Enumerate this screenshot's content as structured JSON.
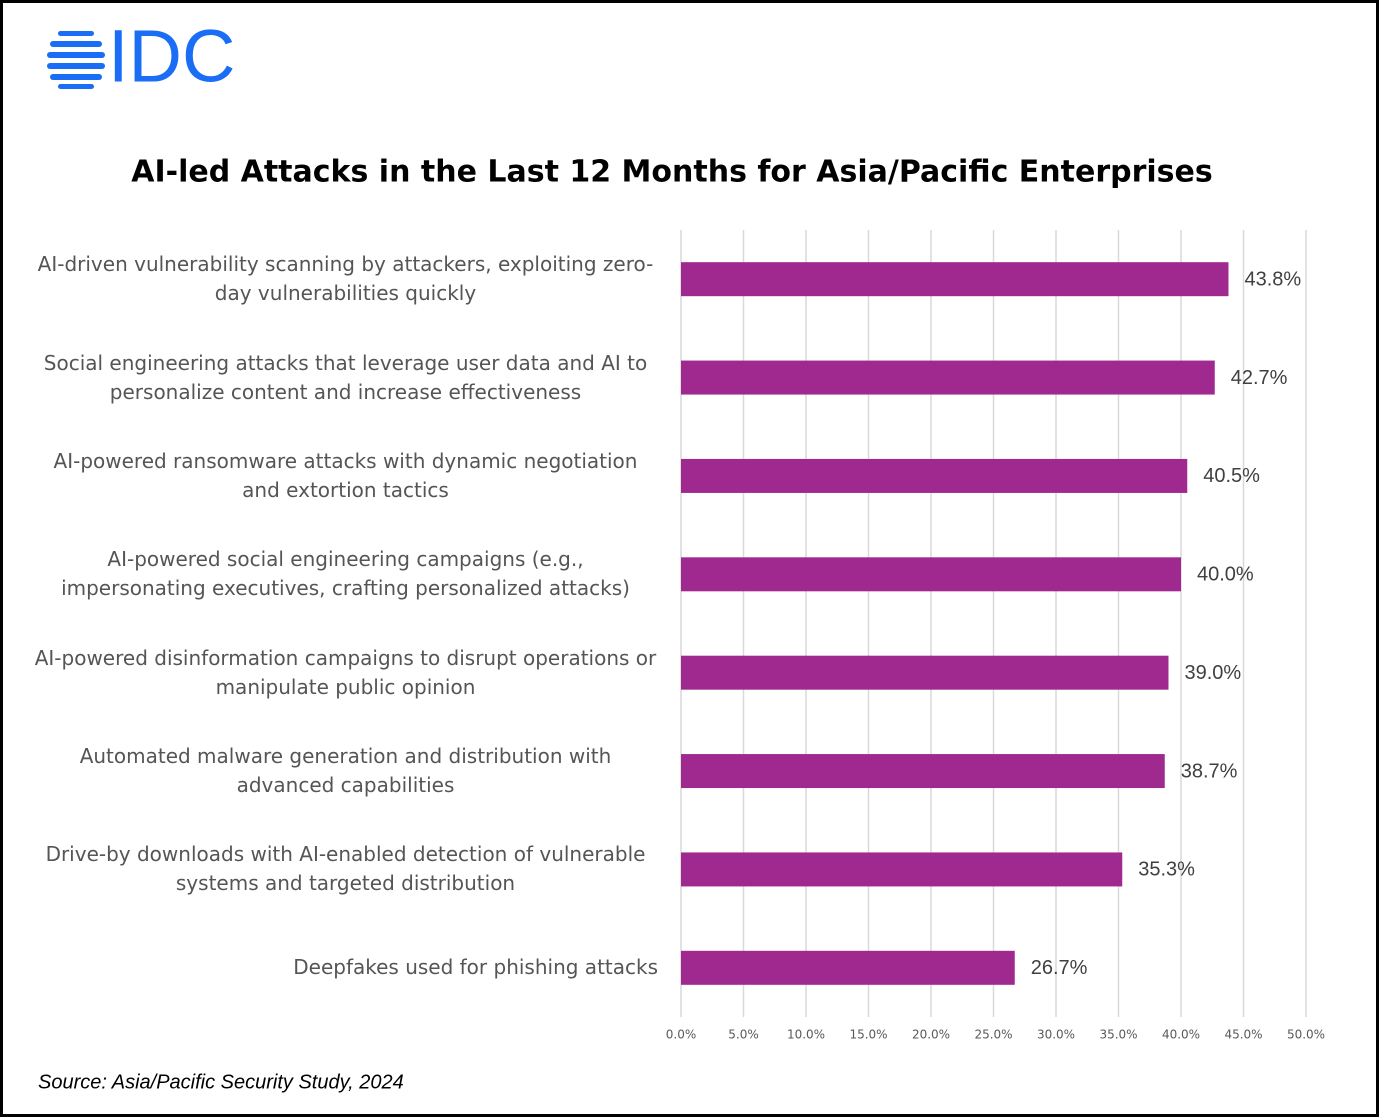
{
  "logo": "IDC",
  "chart_data": {
    "type": "bar",
    "orientation": "horizontal",
    "title": "AI-led Attacks in the Last 12 Months for Asia/Pacific Enterprises",
    "categories": [
      "AI-driven vulnerability scanning by attackers, exploiting zero-day vulnerabilities quickly",
      "Social engineering attacks that leverage user data and AI to personalize content and increase effectiveness",
      "AI-powered ransomware attacks with dynamic negotiation and extortion tactics",
      "AI-powered social engineering campaigns (e.g., impersonating executives, crafting personalized attacks)",
      "AI-powered disinformation campaigns to disrupt operations or manipulate public opinion",
      "Automated malware generation and distribution with advanced capabilities",
      "Drive-by downloads with AI-enabled detection of vulnerable systems and targeted distribution",
      "Deepfakes used for phishing attacks"
    ],
    "values": [
      43.8,
      42.7,
      40.5,
      40.0,
      39.0,
      38.7,
      35.3,
      26.7
    ],
    "value_labels": [
      "43.8%",
      "42.7%",
      "40.5%",
      "40.0%",
      "39.0%",
      "38.7%",
      "35.3%",
      "26.7%"
    ],
    "color": "#a0298f",
    "xlim": [
      0,
      50
    ],
    "xticks": [
      {
        "value": 0,
        "label": "0.0%"
      },
      {
        "value": 5,
        "label": "5.0%"
      },
      {
        "value": 10,
        "label": "10.0%"
      },
      {
        "value": 15,
        "label": "15.0%"
      },
      {
        "value": 20,
        "label": "20.0%"
      },
      {
        "value": 25,
        "label": "25.0%"
      },
      {
        "value": 30,
        "label": "30.0%"
      },
      {
        "value": 35,
        "label": "35.0%"
      },
      {
        "value": 40,
        "label": "40.0%"
      },
      {
        "value": 45,
        "label": "45.0%"
      },
      {
        "value": 50,
        "label": "50.0%"
      }
    ],
    "grid": true,
    "source": "Source: Asia/Pacific Security Study, 2024"
  }
}
